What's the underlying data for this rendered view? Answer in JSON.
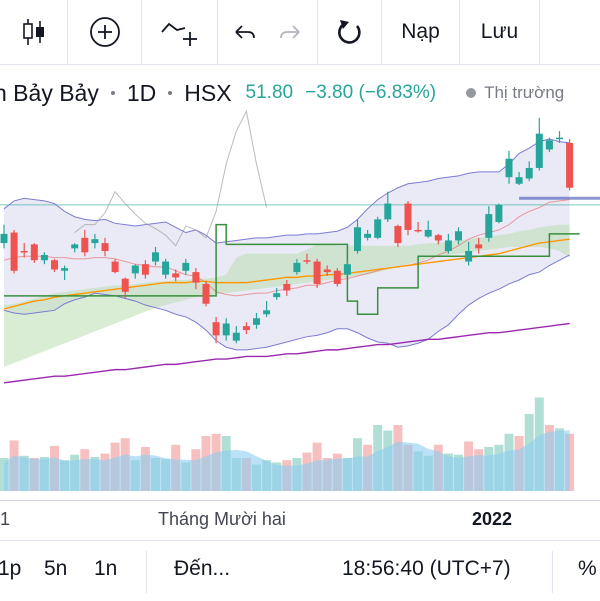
{
  "toolbar": {
    "indicators_icon": "candlestick-icon",
    "add_icon": "plus-circle-icon",
    "compare_icon": "compare-line-plus-icon",
    "undo_icon": "undo-arrow-icon",
    "redo_icon": "redo-arrow-icon",
    "refresh_icon": "reload-icon",
    "load_label": "Nạp",
    "save_label": "Lưu"
  },
  "symbol": {
    "name": "n Bảy Bảy",
    "interval": "1D",
    "exchange": "HSX",
    "price": "51.80",
    "change": "−3.80 (−6.83%)",
    "market_status": "Thị trường"
  },
  "xaxis": {
    "labels": [
      "1",
      "Tháng Mười hai",
      "2022"
    ]
  },
  "bottom": {
    "ranges": [
      "1p",
      "5n",
      "1n"
    ],
    "goto": "Đến...",
    "clock": "18:56:40 (UTC+7)",
    "percent": "%"
  },
  "colors": {
    "up": "#26a69a",
    "down": "#ef5350",
    "bb_fill": "#dcdcf2",
    "bb_line": "#7b7bd4",
    "ma_orange": "#ff9800",
    "ma_purple": "#9c27b0",
    "ichimoku_green": "#388e3c",
    "ichimoku_red": "#880e4f",
    "cloud_green": "#b9dcb0",
    "cloud_red": "#f7c5c5",
    "vol_up": "#a3d9cf",
    "vol_down": "#f5b5b5",
    "vol_ma": "#8ecdf0"
  },
  "chart_data": {
    "type": "candlestick",
    "x": [
      "c1",
      "c2",
      "c3",
      "c4",
      "c5",
      "c6",
      "c7",
      "c8",
      "c9",
      "c10",
      "c11",
      "c12",
      "c13",
      "c14",
      "c15",
      "c16",
      "c17",
      "c18",
      "c19",
      "c20",
      "c21",
      "c22",
      "c23",
      "c24",
      "c25",
      "c26",
      "c27",
      "c28",
      "c29",
      "c30",
      "c31",
      "c32",
      "c33",
      "c34",
      "c35",
      "c36",
      "c37",
      "c38",
      "c39",
      "c40",
      "c41",
      "c42",
      "c43",
      "c44",
      "c45",
      "c46",
      "c47",
      "c48",
      "c49",
      "c50",
      "c51",
      "c52",
      "c53",
      "c54",
      "c55",
      "c56",
      "c57"
    ],
    "open": [
      47.6,
      48.4,
      47.0,
      47.5,
      46.3,
      46.3,
      45.5,
      47.2,
      48.0,
      47.6,
      47.6,
      46.2,
      44.9,
      45.3,
      46.0,
      46.2,
      45.2,
      45.3,
      45.5,
      45.4,
      44.5,
      41.6,
      40.6,
      40.2,
      41.3,
      41.4,
      42.2,
      43.5,
      44.5,
      45.4,
      46.3,
      46.2,
      45.6,
      45.5,
      45.2,
      47.0,
      48.0,
      48.0,
      49.4,
      48.9,
      50.6,
      48.6,
      48.1,
      48.2,
      47.0,
      47.8,
      46.2,
      47.5,
      48.0,
      49.2,
      52.6,
      52.1,
      52.5,
      53.3,
      54.7,
      55.6,
      55.2
    ],
    "close": [
      48.3,
      45.5,
      46.9,
      46.3,
      46.7,
      45.6,
      45.7,
      47.5,
      46.9,
      47.9,
      47.0,
      45.4,
      43.9,
      45.9,
      45.2,
      46.9,
      46.2,
      45.0,
      46.1,
      44.6,
      43.0,
      40.6,
      41.5,
      40.8,
      41.0,
      41.9,
      42.5,
      43.8,
      44.0,
      46.1,
      46.2,
      44.5,
      45.4,
      44.5,
      46.0,
      48.8,
      48.3,
      49.4,
      50.6,
      47.6,
      48.6,
      48.5,
      48.6,
      47.8,
      47.8,
      48.5,
      47.0,
      47.2,
      49.8,
      50.5,
      54.0,
      52.6,
      53.3,
      55.9,
      55.4,
      55.6,
      51.8
    ],
    "high": [
      49.0,
      48.6,
      47.6,
      47.6,
      46.9,
      46.4,
      45.9,
      47.6,
      48.6,
      48.3,
      48.0,
      46.4,
      45.0,
      46.0,
      46.3,
      47.3,
      46.4,
      45.6,
      46.4,
      45.7,
      44.7,
      42.0,
      41.9,
      41.3,
      41.6,
      42.3,
      43.2,
      44.2,
      44.8,
      46.4,
      46.8,
      46.4,
      45.9,
      45.7,
      46.3,
      49.4,
      48.6,
      49.6,
      51.5,
      49.0,
      50.8,
      49.2,
      49.3,
      48.3,
      48.3,
      48.8,
      47.7,
      48.0,
      50.4,
      50.6,
      54.6,
      53.0,
      53.8,
      57.1,
      55.6,
      56.1,
      55.5
    ],
    "low": [
      47.2,
      45.3,
      46.5,
      46.1,
      46.0,
      45.4,
      44.8,
      46.9,
      46.6,
      47.2,
      46.6,
      45.3,
      43.4,
      44.9,
      44.9,
      45.9,
      44.9,
      44.7,
      45.2,
      44.1,
      42.8,
      40.0,
      40.2,
      40.0,
      40.7,
      41.1,
      42.0,
      43.3,
      43.6,
      45.2,
      46.0,
      44.2,
      45.1,
      44.3,
      45.1,
      46.8,
      47.8,
      47.9,
      49.2,
      47.3,
      48.2,
      48.4,
      48.0,
      47.5,
      46.8,
      47.5,
      45.9,
      46.8,
      47.7,
      49.1,
      52.1,
      52.0,
      52.3,
      53.1,
      54.5,
      55.2,
      51.6
    ],
    "bb_upper": [
      50.2,
      50.8,
      51.0,
      50.9,
      50.8,
      50.6,
      50.0,
      49.6,
      49.4,
      49.3,
      49.4,
      49.1,
      49.0,
      48.9,
      49.0,
      49.1,
      49.2,
      48.8,
      48.4,
      48.6,
      48.2,
      47.6,
      47.7,
      47.8,
      47.9,
      48.0,
      48.0,
      48.1,
      48.2,
      48.2,
      48.3,
      48.3,
      48.4,
      48.5,
      48.8,
      49.4,
      50.2,
      50.9,
      51.4,
      51.8,
      52.1,
      52.2,
      52.3,
      52.5,
      52.6,
      52.7,
      52.9,
      53.0,
      53.0,
      53.0,
      53.6,
      54.4,
      54.8,
      55.3,
      55.5,
      55.3,
      55.2
    ],
    "bb_lower": [
      42.5,
      42.3,
      42.2,
      42.3,
      42.4,
      42.5,
      43.0,
      43.3,
      43.5,
      43.8,
      43.7,
      43.6,
      43.4,
      43.2,
      42.9,
      42.7,
      42.5,
      42.2,
      42.0,
      41.6,
      41.0,
      40.2,
      39.7,
      39.5,
      39.5,
      39.6,
      39.7,
      39.9,
      40.1,
      40.3,
      40.5,
      40.6,
      40.8,
      41.1,
      41.1,
      40.8,
      40.4,
      40.1,
      40.0,
      39.7,
      39.8,
      40.0,
      40.3,
      40.9,
      41.4,
      42.2,
      42.9,
      43.4,
      43.8,
      44.1,
      44.5,
      44.8,
      45.2,
      45.4,
      45.9,
      46.3,
      46.7
    ],
    "bb_mid": [
      46.3,
      46.5,
      46.6,
      46.6,
      46.6,
      46.5,
      46.5,
      46.4,
      46.4,
      46.5,
      46.5,
      46.4,
      46.2,
      46.0,
      45.9,
      45.8,
      45.8,
      45.5,
      45.2,
      45.1,
      44.6,
      43.9,
      43.7,
      43.6,
      43.7,
      43.8,
      43.8,
      44.0,
      44.1,
      44.2,
      44.4,
      44.4,
      44.6,
      44.8,
      44.9,
      45.1,
      45.3,
      45.5,
      45.7,
      45.8,
      45.9,
      46.1,
      46.3,
      46.7,
      47.0,
      47.4,
      47.9,
      48.2,
      48.4,
      48.6,
      49.0,
      49.6,
      50.0,
      50.3,
      50.7,
      50.8,
      50.9
    ],
    "ma_orange": [
      42.6,
      42.8,
      43.0,
      43.2,
      43.3,
      43.5,
      43.6,
      43.7,
      43.8,
      43.9,
      44.0,
      44.1,
      44.2,
      44.3,
      44.4,
      44.5,
      44.6,
      44.6,
      44.6,
      44.7,
      44.7,
      44.6,
      44.6,
      44.6,
      44.6,
      44.7,
      44.8,
      44.9,
      45.0,
      45.0,
      45.1,
      45.1,
      45.2,
      45.2,
      45.3,
      45.4,
      45.5,
      45.6,
      45.7,
      45.8,
      45.9,
      46.0,
      46.1,
      46.2,
      46.3,
      46.4,
      46.5,
      46.6,
      46.7,
      46.8,
      47.0,
      47.2,
      47.4,
      47.6,
      47.7,
      47.8,
      47.9
    ],
    "ma_purple": [
      37.0,
      37.1,
      37.2,
      37.3,
      37.4,
      37.5,
      37.5,
      37.6,
      37.7,
      37.8,
      37.9,
      38.0,
      38.0,
      38.1,
      38.2,
      38.3,
      38.4,
      38.4,
      38.5,
      38.6,
      38.7,
      38.8,
      38.8,
      38.9,
      39.0,
      39.0,
      39.0,
      39.1,
      39.2,
      39.2,
      39.3,
      39.4,
      39.5,
      39.5,
      39.6,
      39.7,
      39.8,
      39.9,
      39.9,
      40.0,
      40.1,
      40.2,
      40.3,
      40.3,
      40.4,
      40.5,
      40.6,
      40.7,
      40.8,
      40.8,
      40.9,
      41.0,
      41.1,
      41.2,
      41.3,
      41.4,
      41.5
    ],
    "ichimoku_base": [
      43.6,
      43.6,
      43.6,
      43.6,
      43.6,
      43.6,
      43.6,
      43.6,
      43.6,
      43.6,
      43.6,
      43.6,
      43.6,
      43.6,
      43.6,
      43.6,
      43.6,
      43.6,
      43.6,
      43.6,
      43.6,
      49.0,
      47.5,
      47.5,
      47.5,
      47.5,
      47.5,
      47.5,
      47.5,
      47.5,
      47.5,
      47.5,
      47.5,
      47.5,
      43.2,
      42.2,
      42.2,
      44.2,
      44.2,
      44.2,
      44.2,
      46.6,
      46.6,
      46.6,
      46.6,
      46.6,
      46.6,
      46.6,
      46.6,
      46.6,
      46.6,
      46.6,
      46.6,
      46.6,
      48.3,
      48.3,
      48.3
    ],
    "cloud_top": [
      42.9,
      43.0,
      43.2,
      43.4,
      43.6,
      43.8,
      43.9,
      44.0,
      44.1,
      44.2,
      44.3,
      44.4,
      44.4,
      44.5,
      44.6,
      44.7,
      44.7,
      44.8,
      44.8,
      44.9,
      44.9,
      45.0,
      45.2,
      46.5,
      46.8,
      46.8,
      46.8,
      46.8,
      46.8,
      46.8,
      47.1,
      47.5,
      47.5,
      47.4,
      47.4,
      47.4,
      47.4,
      47.4,
      47.4,
      47.4,
      47.4,
      47.5,
      47.6,
      47.6,
      47.7,
      47.8,
      47.9,
      48.0,
      48.1,
      48.2,
      48.3,
      48.5,
      48.6,
      48.8,
      48.9,
      49.0,
      49.0
    ],
    "cloud_bottom": [
      38.2,
      38.5,
      38.8,
      39.1,
      39.4,
      39.7,
      40.0,
      40.3,
      40.6,
      40.9,
      41.2,
      41.5,
      41.8,
      42.1,
      42.4,
      42.7,
      42.9,
      43.1,
      43.3,
      43.5,
      43.6,
      43.7,
      43.8,
      43.9,
      44.0,
      44.1,
      44.2,
      44.3,
      44.4,
      44.5,
      44.6,
      44.7,
      44.8,
      44.9,
      45.0,
      45.1,
      45.2,
      45.4,
      45.6,
      45.8,
      46.0,
      46.2,
      46.4,
      46.6,
      46.7,
      46.8,
      46.9,
      47.0,
      47.1,
      47.2,
      47.3,
      47.3,
      47.3,
      47.3,
      47.2,
      47.0,
      46.5
    ],
    "lagging": [
      48.4,
      49.0,
      49.0,
      49.9,
      51.5,
      50.6,
      49.8,
      49.1,
      48.7,
      48.2,
      47.4,
      48.9,
      48.6,
      48.0,
      50.0,
      53.6,
      56.1,
      57.6,
      53.6,
      50.3
    ],
    "resistance_green": 50.5,
    "resistance_blue": 51.0,
    "volume_up": [
      0.3,
      0.28,
      0.32,
      0.3,
      0.31,
      0.29,
      0.28,
      0.33,
      0.3,
      0.31,
      0.3,
      0.26,
      0.24,
      0.28,
      0.27,
      0.3,
      0.29,
      0.25,
      0.26,
      0.25,
      0.24,
      0.4,
      0.5,
      0.3,
      0.26,
      0.24,
      0.28,
      0.26,
      0.25,
      0.3,
      0.24,
      0.22,
      0.26,
      0.25,
      0.3,
      0.48,
      0.46,
      0.6,
      0.55,
      0.37,
      0.4,
      0.36,
      0.32,
      0.35,
      0.34,
      0.33,
      0.37,
      0.33,
      0.4,
      0.42,
      0.52,
      0.6,
      0.7,
      0.85,
      0.76,
      0.57,
      0.61
    ],
    "volume_down": [
      0.36,
      0.46,
      0.4,
      0.3,
      0.32,
      0.41,
      0.3,
      0.28,
      0.38,
      0.29,
      0.34,
      0.44,
      0.48,
      0.35,
      0.4,
      0.3,
      0.36,
      0.42,
      0.31,
      0.38,
      0.5,
      0.52,
      0.32,
      0.34,
      0.3,
      0.28,
      0.27,
      0.26,
      0.28,
      0.27,
      0.35,
      0.44,
      0.3,
      0.34,
      0.28,
      0.4,
      0.42,
      0.38,
      0.45,
      0.6,
      0.42,
      0.4,
      0.44,
      0.42,
      0.4,
      0.38,
      0.45,
      0.38,
      0.36,
      0.4,
      0.48,
      0.5,
      0.58,
      0.62,
      0.6,
      0.55,
      0.52
    ],
    "volume_is_up": [
      1,
      0,
      1,
      0,
      1,
      0,
      1,
      1,
      0,
      1,
      0,
      0,
      0,
      1,
      0,
      1,
      1,
      0,
      1,
      0,
      0,
      0,
      1,
      1,
      0,
      1,
      1,
      1,
      0,
      1,
      0,
      0,
      0,
      0,
      1,
      1,
      0,
      1,
      1,
      0,
      0,
      1,
      1,
      0,
      1,
      1,
      0,
      0,
      1,
      1,
      1,
      0,
      1,
      1,
      0,
      1,
      0
    ]
  }
}
